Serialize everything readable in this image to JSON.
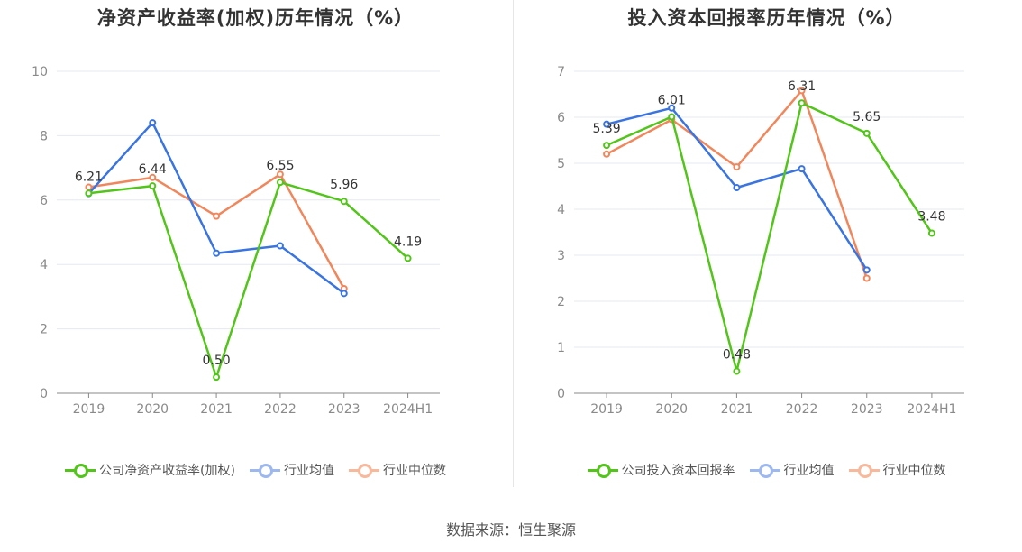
{
  "source_label": "数据来源：恒生聚源",
  "colors": {
    "company": "#52c41a",
    "avg": "#3a74e0",
    "median": "#f0875c",
    "grid": "#e6e8f0",
    "axis": "#888888"
  },
  "chart_data": [
    {
      "type": "line",
      "title": "净资产收益率(加权)历年情况（%）",
      "categories": [
        "2019",
        "2020",
        "2021",
        "2022",
        "2023",
        "2024H1"
      ],
      "ylim": [
        0,
        10
      ],
      "yticks": [
        0,
        2,
        4,
        6,
        8,
        10
      ],
      "grid": true,
      "legend": "bottom",
      "series": [
        {
          "name": "公司净资产收益率(加权)",
          "key": "company",
          "values": [
            6.21,
            6.44,
            0.5,
            6.55,
            5.96,
            4.19
          ],
          "labels": [
            "6.21",
            "6.44",
            "0.50",
            "6.55",
            "5.96",
            "4.19"
          ]
        },
        {
          "name": "行业均值",
          "key": "avg",
          "values": [
            6.2,
            8.4,
            4.35,
            4.58,
            3.1,
            null
          ]
        },
        {
          "name": "行业中位数",
          "key": "median",
          "values": [
            6.4,
            6.7,
            5.5,
            6.8,
            3.25,
            null
          ]
        }
      ]
    },
    {
      "type": "line",
      "title": "投入资本回报率历年情况（%）",
      "categories": [
        "2019",
        "2020",
        "2021",
        "2022",
        "2023",
        "2024H1"
      ],
      "ylim": [
        0,
        7
      ],
      "yticks": [
        0,
        1,
        2,
        3,
        4,
        5,
        6,
        7
      ],
      "grid": true,
      "legend": "bottom",
      "series": [
        {
          "name": "公司投入资本回报率",
          "key": "company",
          "values": [
            5.39,
            6.01,
            0.48,
            6.31,
            5.65,
            3.48
          ],
          "labels": [
            "5.39",
            "6.01",
            "0.48",
            "6.31",
            "5.65",
            "3.48"
          ]
        },
        {
          "name": "行业均值",
          "key": "avg",
          "values": [
            5.85,
            6.2,
            4.47,
            4.88,
            2.68,
            null
          ]
        },
        {
          "name": "行业中位数",
          "key": "median",
          "values": [
            5.2,
            5.95,
            4.92,
            6.58,
            2.5,
            null
          ]
        }
      ]
    }
  ]
}
